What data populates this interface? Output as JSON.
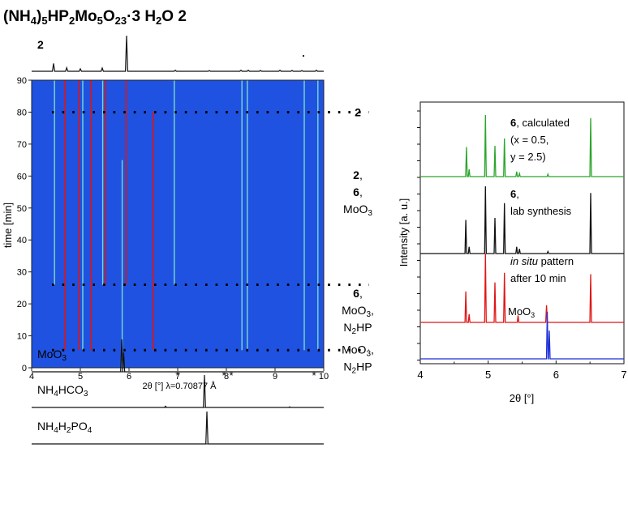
{
  "figure": {
    "title": {
      "parts": [
        {
          "t": "(NH"
        },
        {
          "t": "4",
          "sub": true
        },
        {
          "t": ")"
        },
        {
          "t": "5",
          "sub": true
        },
        {
          "t": "HP"
        },
        {
          "t": "2",
          "sub": true
        },
        {
          "t": "Mo"
        },
        {
          "t": "5",
          "sub": true
        },
        {
          "t": "O"
        },
        {
          "t": "23",
          "sub": true
        },
        {
          "t": "·3 H"
        },
        {
          "t": "2",
          "sub": true
        },
        {
          "t": "O 2"
        }
      ]
    },
    "colors": {
      "map_bg": "#1f52e0",
      "green": "#2ba52b",
      "red": "#e01515",
      "blue": "#1f2fd8",
      "black": "#111111",
      "cyan": "#7fe6cf"
    }
  },
  "chart_data": [
    {
      "id": "reference-2",
      "type": "line",
      "label": "2",
      "peaks": [
        [
          4.45,
          0.22
        ],
        [
          4.72,
          0.1
        ],
        [
          5.0,
          0.07
        ],
        [
          5.45,
          0.09
        ],
        [
          5.95,
          1.0
        ],
        [
          6.95,
          0.03
        ],
        [
          7.65,
          0.02
        ],
        [
          8.3,
          0.03
        ],
        [
          8.45,
          0.03
        ],
        [
          8.7,
          0.025
        ],
        [
          9.1,
          0.03
        ],
        [
          9.35,
          0.025
        ],
        [
          9.55,
          0.02
        ],
        [
          9.85,
          0.03
        ]
      ],
      "xlim": [
        4,
        10
      ]
    },
    {
      "id": "in-situ-heatmap",
      "type": "heatmap",
      "xlabel": "2θ [°] λ=0.70877 Å",
      "ylabel": "time [min]",
      "xlim": [
        4,
        10
      ],
      "ylim": [
        0,
        90
      ],
      "xticks": [
        "4",
        "5",
        "6",
        "7",
        "8",
        "9",
        "10"
      ],
      "yticks": [
        "0",
        "10",
        "20",
        "30",
        "40",
        "50",
        "60",
        "70",
        "80",
        "90"
      ],
      "dotted_lines_at": [
        80,
        26,
        5.5
      ],
      "stars_at": [
        7.0,
        7.95,
        8.1,
        9.8
      ],
      "star_symbol": "*",
      "reflections": [
        {
          "x": 4.47,
          "t0": 26,
          "t1": 90,
          "color": "cyan"
        },
        {
          "x": 4.68,
          "t0": 5.5,
          "t1": 90,
          "color": "red"
        },
        {
          "x": 4.97,
          "t0": 5.5,
          "t1": 90,
          "color": "red"
        },
        {
          "x": 5.05,
          "t0": 5.5,
          "t1": 90,
          "color": "cyan"
        },
        {
          "x": 5.22,
          "t0": 5.5,
          "t1": 90,
          "color": "red"
        },
        {
          "x": 5.46,
          "t0": 26,
          "t1": 90,
          "color": "cyan"
        },
        {
          "x": 5.52,
          "t0": 26,
          "t1": 90,
          "color": "red"
        },
        {
          "x": 5.86,
          "t0": 0,
          "t1": 65,
          "color": "cyan"
        },
        {
          "x": 5.94,
          "t0": 26,
          "t1": 90,
          "color": "red"
        },
        {
          "x": 6.5,
          "t0": 5.5,
          "t1": 80,
          "color": "red"
        },
        {
          "x": 6.93,
          "t0": 26,
          "t1": 90,
          "color": "cyan"
        },
        {
          "x": 8.32,
          "t0": 5.5,
          "t1": 90,
          "color": "cyan"
        },
        {
          "x": 8.43,
          "t0": 5.5,
          "t1": 90,
          "color": "cyan"
        },
        {
          "x": 9.6,
          "t0": 5.5,
          "t1": 90,
          "color": "cyan"
        },
        {
          "x": 9.88,
          "t0": 5.5,
          "t1": 90,
          "color": "cyan"
        }
      ],
      "phase_labels": [
        {
          "at_time": 80,
          "lines": [
            [
              {
                "t": "2",
                "b": true
              }
            ]
          ]
        },
        {
          "at_time": 55,
          "lines": [
            [
              {
                "t": "2",
                "b": true
              },
              {
                "t": ","
              }
            ],
            [
              {
                "t": "6",
                "b": true
              },
              {
                "t": ","
              }
            ],
            [
              {
                "t": "MoO"
              },
              {
                "t": "3",
                "sub": true
              }
            ]
          ]
        },
        {
          "at_time": 18,
          "lines": [
            [
              {
                "t": "6",
                "b": true
              },
              {
                "t": ","
              }
            ],
            [
              {
                "t": "MoO"
              },
              {
                "t": "3",
                "sub": true
              },
              {
                "t": ","
              }
            ],
            [
              {
                "t": "N"
              },
              {
                "t": "2",
                "sub": true
              },
              {
                "t": "HP"
              }
            ]
          ]
        },
        {
          "at_time": 3,
          "lines": [
            [
              {
                "t": "MoO"
              },
              {
                "t": "3",
                "sub": true
              },
              {
                "t": ","
              }
            ],
            [
              {
                "t": "N"
              },
              {
                "t": "2",
                "sub": true
              },
              {
                "t": "HP"
              }
            ]
          ]
        }
      ]
    },
    {
      "id": "reference-starting-materials",
      "type": "line",
      "xlim": [
        4,
        10
      ],
      "series": [
        {
          "name": [
            {
              "t": "MoO"
            },
            {
              "t": "3",
              "sub": true
            }
          ],
          "peaks": [
            [
              5.85,
              1.0
            ],
            [
              5.89,
              0.6
            ]
          ]
        },
        {
          "name": [
            {
              "t": "NH"
            },
            {
              "t": "4",
              "sub": true
            },
            {
              "t": "HCO"
            },
            {
              "t": "3",
              "sub": true
            }
          ],
          "peaks": [
            [
              6.75,
              0.04
            ],
            [
              7.55,
              1.0
            ],
            [
              9.3,
              0.02
            ]
          ]
        },
        {
          "name": [
            {
              "t": "NH"
            },
            {
              "t": "4",
              "sub": true
            },
            {
              "t": "H"
            },
            {
              "t": "2",
              "sub": true
            },
            {
              "t": "PO"
            },
            {
              "t": "4",
              "sub": true
            }
          ],
          "peaks": [
            [
              7.6,
              1.0
            ]
          ]
        }
      ]
    },
    {
      "id": "stacked-patterns-6",
      "type": "line",
      "xlabel": "2θ [°]",
      "ylabel": "Intensity [a. u.]",
      "xlim": [
        4,
        7
      ],
      "xticks": [
        "4",
        "5",
        "6",
        "7"
      ],
      "series": [
        {
          "name": [
            {
              "t": "6",
              "b": true
            },
            {
              "t": ", calculated"
            }
          ],
          "extra_lines": [
            "(x = 0.5,",
            "y = 2.5)"
          ],
          "color": "green",
          "peaks": [
            [
              4.68,
              0.48
            ],
            [
              4.72,
              0.12
            ],
            [
              4.96,
              1.0
            ],
            [
              5.1,
              0.5
            ],
            [
              5.24,
              0.62
            ],
            [
              5.42,
              0.08
            ],
            [
              5.46,
              0.05
            ],
            [
              5.88,
              0.04
            ],
            [
              6.51,
              0.95
            ]
          ]
        },
        {
          "name": [
            {
              "t": "6",
              "b": true
            },
            {
              "t": ","
            }
          ],
          "extra_lines": [
            "lab synthesis"
          ],
          "color": "black",
          "peaks": [
            [
              4.67,
              0.5
            ],
            [
              4.72,
              0.1
            ],
            [
              4.96,
              1.0
            ],
            [
              5.1,
              0.53
            ],
            [
              5.24,
              0.75
            ],
            [
              5.42,
              0.1
            ],
            [
              5.46,
              0.07
            ],
            [
              5.88,
              0.03
            ],
            [
              6.51,
              0.9
            ]
          ]
        },
        {
          "name": [
            {
              "t": "in situ",
              "i": true
            },
            {
              "t": " pattern"
            }
          ],
          "extra_lines": [
            "after 10 min"
          ],
          "color": "red",
          "peaks": [
            [
              4.67,
              0.45
            ],
            [
              4.72,
              0.12
            ],
            [
              4.96,
              1.0
            ],
            [
              5.1,
              0.58
            ],
            [
              5.24,
              0.72
            ],
            [
              5.44,
              0.1
            ],
            [
              5.86,
              0.25
            ],
            [
              6.51,
              0.7
            ]
          ]
        },
        {
          "name": [
            {
              "t": "MoO"
            },
            {
              "t": "3",
              "sub": true
            }
          ],
          "extra_lines": [],
          "color": "blue",
          "peaks": [
            [
              5.87,
              1.0
            ],
            [
              5.9,
              0.6
            ]
          ]
        }
      ]
    }
  ]
}
